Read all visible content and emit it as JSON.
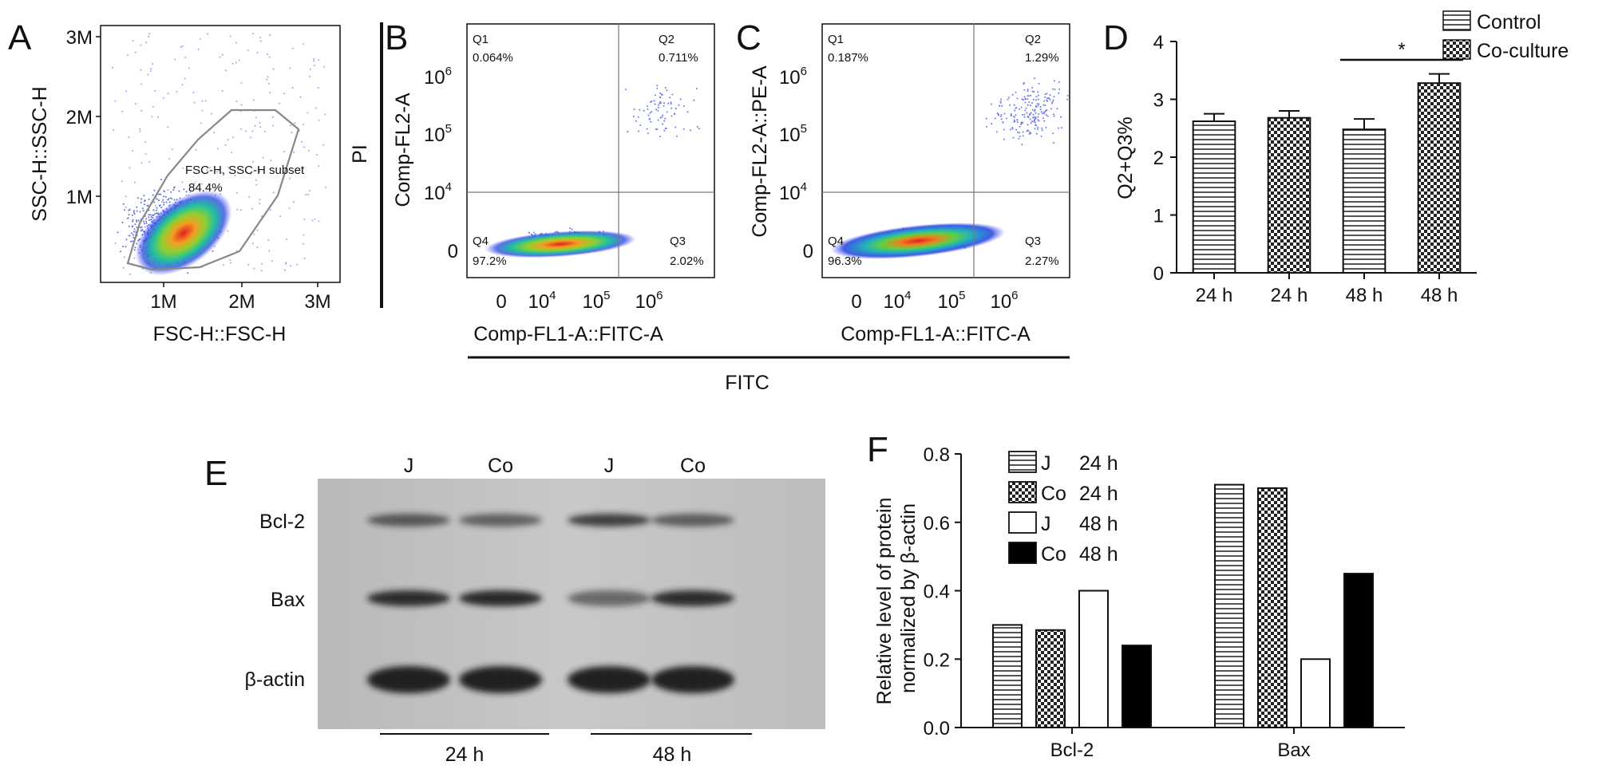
{
  "panels": {
    "a": "A",
    "b": "B",
    "c": "C",
    "d": "D",
    "e": "E",
    "f": "F"
  },
  "flow": {
    "pi_label": "PI",
    "fitc_label": "FITC",
    "scatter_plot": {
      "xlabel": "FSC-H::FSC-H",
      "ylabel": "SSC-H::SSC-H",
      "x_ticks": [
        "1M",
        "2M",
        "3M"
      ],
      "y_ticks": [
        "1M",
        "2M",
        "3M"
      ],
      "gate_name": "FSC-H, SSC-H subset",
      "gate_pct": "84.4%"
    },
    "annexin_plots": [
      {
        "xlabel": "Comp-FL1-A::FITC-A",
        "ylabel": "Comp-FL2-A",
        "x_ticks": [
          "0",
          "10",
          "10",
          "10"
        ],
        "x_exps": [
          "",
          "4",
          "5",
          "6"
        ],
        "y_ticks": [
          "0",
          "10",
          "10",
          "10"
        ],
        "y_exps": [
          "",
          "4",
          "5",
          "6"
        ],
        "quadrants": [
          {
            "name": "Q1",
            "value": "0.064%"
          },
          {
            "name": "Q2",
            "value": "0.711%"
          },
          {
            "name": "Q3",
            "value": "2.02%"
          },
          {
            "name": "Q4",
            "value": "97.2%"
          }
        ]
      },
      {
        "xlabel": "Comp-FL1-A::FITC-A",
        "ylabel": "Comp-FL2-A::PE-A",
        "x_ticks": [
          "0",
          "10",
          "10",
          "10"
        ],
        "x_exps": [
          "",
          "4",
          "5",
          "6"
        ],
        "y_ticks": [
          "0",
          "10",
          "10",
          "10"
        ],
        "y_exps": [
          "",
          "4",
          "5",
          "6"
        ],
        "quadrants": [
          {
            "name": "Q1",
            "value": "0.187%"
          },
          {
            "name": "Q2",
            "value": "1.29%"
          },
          {
            "name": "Q3",
            "value": "2.27%"
          },
          {
            "name": "Q4",
            "value": "96.3%"
          }
        ]
      }
    ]
  },
  "blot": {
    "lanes": [
      "J",
      "Co",
      "J",
      "Co"
    ],
    "rows": [
      "Bcl-2",
      "Bax",
      "β-actin"
    ],
    "groups": [
      "24 h",
      "48 h"
    ]
  },
  "colors": {
    "axis": "#111111",
    "bar_outline": "#111111",
    "black_bar": "#000000",
    "gate": "#777777"
  },
  "chart_data": [
    {
      "type": "bar",
      "ylabel": "Q2+Q3%",
      "ylim": [
        0,
        4
      ],
      "y_ticks": [
        "0",
        "1",
        "2",
        "3",
        "4"
      ],
      "categories": [
        "24 h",
        "24 h",
        "48 h",
        "48 h"
      ],
      "values": [
        2.62,
        2.68,
        2.48,
        3.28
      ],
      "errors": [
        0.13,
        0.12,
        0.18,
        0.16
      ],
      "patterns": [
        "hstripe",
        "checker",
        "hstripe",
        "checker"
      ],
      "legend": [
        "Control",
        "Co-culture"
      ],
      "legend_position": "top-right",
      "significance": "*",
      "grid": false
    },
    {
      "type": "bar",
      "ylabel": "Relative level of protein normalized by β-actin",
      "ylim": [
        0,
        0.8
      ],
      "y_ticks": [
        "0.0",
        "0.2",
        "0.4",
        "0.6",
        "0.8"
      ],
      "categories": [
        "Bcl-2",
        "Bax"
      ],
      "series": [
        {
          "name": "J",
          "time": "24 h",
          "values": [
            0.3,
            0.71
          ],
          "pattern": "hstripe"
        },
        {
          "name": "Co",
          "time": "24 h",
          "values": [
            0.285,
            0.7
          ],
          "pattern": "checker"
        },
        {
          "name": "J",
          "time": "48 h",
          "values": [
            0.4,
            0.2
          ],
          "pattern": "white"
        },
        {
          "name": "Co",
          "time": "48 h",
          "values": [
            0.24,
            0.45
          ],
          "pattern": "black"
        }
      ],
      "legend_position": "top-left",
      "grid": false
    }
  ]
}
